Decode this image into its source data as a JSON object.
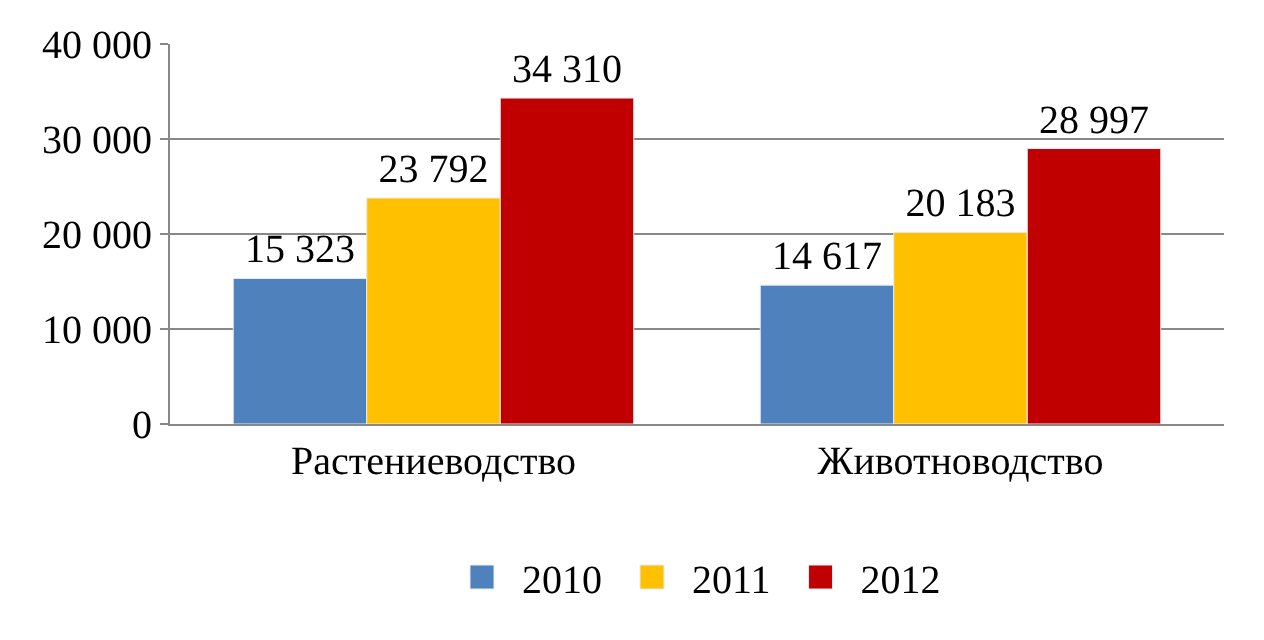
{
  "chart_data": {
    "type": "bar",
    "categories": [
      "Растениеводство",
      "Животноводство"
    ],
    "series": [
      {
        "name": "2010",
        "color": "#4f81bd",
        "values": [
          15323,
          14617
        ],
        "value_labels": [
          "15 323",
          "14 617"
        ]
      },
      {
        "name": "2011",
        "color": "#ffc000",
        "values": [
          23792,
          20183
        ],
        "value_labels": [
          "23 792",
          "20 183"
        ]
      },
      {
        "name": "2012",
        "color": "#c00000",
        "values": [
          34310,
          28997
        ],
        "value_labels": [
          "34 310",
          "28 997"
        ]
      }
    ],
    "ylim": [
      0,
      40000
    ],
    "yticks": [
      0,
      {
        "value": 10000,
        "label": "10 000"
      },
      {
        "value": 20000,
        "label": "20 000"
      },
      {
        "value": 30000,
        "label": "30 000"
      },
      {
        "value": 40000,
        "label": "40 000"
      }
    ],
    "grid": "y",
    "legend": "bottom"
  }
}
